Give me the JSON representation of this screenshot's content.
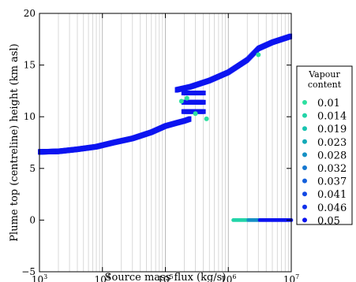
{
  "chart_data": {
    "type": "scatter",
    "title": "",
    "xlabel": "Source mass flux (kg/s)",
    "ylabel": "Plume top (centreline) height (km asl)",
    "xscale": "log",
    "xlim": [
      1000,
      10000000
    ],
    "ylim": [
      -5,
      20
    ],
    "grid": "vertical minor and major lines on x only",
    "x_ticks": [
      {
        "value": 1000,
        "base": "10",
        "exp": "3"
      },
      {
        "value": 10000,
        "base": "10",
        "exp": "4"
      },
      {
        "value": 100000,
        "base": "10",
        "exp": "5"
      },
      {
        "value": 1000000,
        "base": "10",
        "exp": "6"
      },
      {
        "value": 10000000,
        "base": "10",
        "exp": "7"
      }
    ],
    "y_ticks": [
      {
        "value": -5,
        "label": "−5"
      },
      {
        "value": 0,
        "label": "0"
      },
      {
        "value": 5,
        "label": "5"
      },
      {
        "value": 10,
        "label": "10"
      },
      {
        "value": 15,
        "label": "15"
      },
      {
        "value": 20,
        "label": "20"
      }
    ],
    "legend": {
      "title_line1": "Vapour",
      "title_line2": "content",
      "placement": "outside right",
      "entries": [
        {
          "label": "0.01",
          "color": "#2ee0a0"
        },
        {
          "label": "0.014",
          "color": "#22d4a8"
        },
        {
          "label": "0.019",
          "color": "#18c4b0"
        },
        {
          "label": "0.023",
          "color": "#14aab8"
        },
        {
          "label": "0.028",
          "color": "#1590c4"
        },
        {
          "label": "0.032",
          "color": "#1678d0"
        },
        {
          "label": "0.037",
          "color": "#1460dc"
        },
        {
          "label": "0.041",
          "color": "#1248e4"
        },
        {
          "label": "0.046",
          "color": "#1030ea"
        },
        {
          "label": "0.05",
          "color": "#0c14f0"
        }
      ]
    },
    "series": [
      {
        "label_ref": "0.05",
        "color": "#0c14f0",
        "branch_lower": {
          "x": [
            1000,
            2000,
            4000,
            8000,
            15000,
            30000,
            60000,
            100000,
            150000,
            200000,
            250000
          ],
          "y": [
            6.6,
            6.65,
            6.85,
            7.1,
            7.5,
            7.9,
            8.5,
            9.1,
            9.4,
            9.6,
            9.8
          ]
        },
        "branch_upper": {
          "x": [
            150000,
            250000,
            500000,
            1000000,
            2000000,
            3000000,
            5000000,
            10000000
          ],
          "y": [
            12.6,
            12.9,
            13.5,
            14.3,
            15.5,
            16.6,
            17.2,
            17.8
          ]
        },
        "branch_zero": {
          "x": [
            1200000,
            2000000,
            4000000,
            10000000
          ],
          "y": [
            0,
            0,
            0,
            0
          ]
        }
      }
    ],
    "highlights": [
      {
        "label_ref": "0.01",
        "color": "#2ee0a0",
        "x": [
          180000,
          220000,
          300000,
          450000,
          3000000
        ],
        "y": [
          11.5,
          11.8,
          10.3,
          9.8,
          16.0
        ]
      }
    ]
  }
}
